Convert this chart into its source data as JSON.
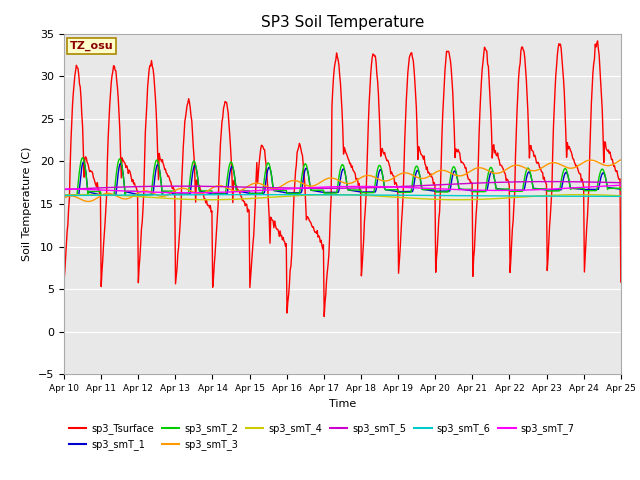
{
  "title": "SP3 Soil Temperature",
  "ylabel": "Soil Temperature (C)",
  "xlabel": "Time",
  "annotation": "TZ_osu",
  "ylim": [
    -5,
    35
  ],
  "xlim": [
    0,
    15
  ],
  "background_color": "#ffffff",
  "plot_bg_color": "#e8e8e8",
  "xtick_labels": [
    "Apr 10",
    "Apr 11",
    "Apr 12",
    "Apr 13",
    "Apr 14",
    "Apr 15",
    "Apr 16",
    "Apr 17",
    "Apr 18",
    "Apr 19",
    "Apr 20",
    "Apr 21",
    "Apr 22",
    "Apr 23",
    "Apr 24",
    "Apr 25"
  ],
  "series_colors": {
    "sp3_Tsurface": "#ff0000",
    "sp3_smT_1": "#0000cc",
    "sp3_smT_2": "#00cc00",
    "sp3_smT_3": "#ff9900",
    "sp3_smT_4": "#cccc00",
    "sp3_smT_5": "#cc00cc",
    "sp3_smT_6": "#00cccc",
    "sp3_smT_7": "#ff00ff"
  },
  "legend_order": [
    "sp3_Tsurface",
    "sp3_smT_1",
    "sp3_smT_2",
    "sp3_smT_3",
    "sp3_smT_4",
    "sp3_smT_5",
    "sp3_smT_6",
    "sp3_smT_7"
  ]
}
